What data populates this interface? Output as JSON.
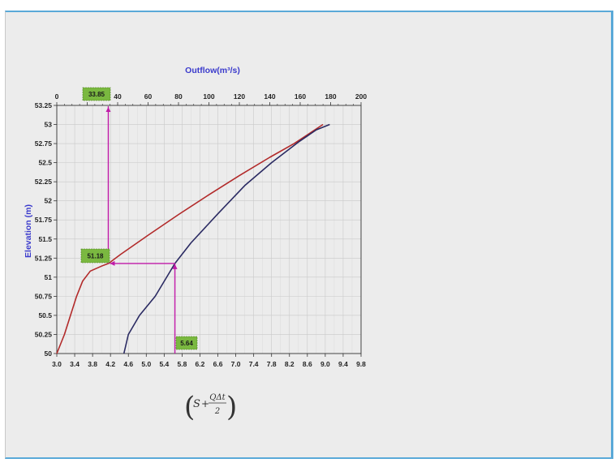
{
  "chart_data": {
    "type": "line",
    "xlabel_top": "Outflow(m³/s)",
    "ylabel": "Elevation (m)",
    "xlabel_bottom_formula": {
      "S": "S",
      "plus": "+",
      "numerator": "QΔt",
      "denominator": "2"
    },
    "top_axis": {
      "range": [
        0,
        200
      ],
      "ticks": [
        "0",
        "20",
        "40",
        "60",
        "80",
        "100",
        "120",
        "140",
        "160",
        "180",
        "200"
      ]
    },
    "bottom_axis": {
      "range": [
        3.0,
        9.8
      ],
      "ticks": [
        "3.0",
        "3.4",
        "3.8",
        "4.2",
        "4.6",
        "5.0",
        "5.4",
        "5.8",
        "6.2",
        "6.6",
        "7.0",
        "7.4",
        "7.8",
        "8.2",
        "8.6",
        "9.0",
        "9.4",
        "9.8"
      ]
    },
    "y_axis": {
      "range": [
        50,
        53.25
      ],
      "ticks": [
        "53.25",
        "53",
        "52.75",
        "52.5",
        "52.25",
        "52",
        "51.75",
        "51.5",
        "51.25",
        "51",
        "50.75",
        "50.5",
        "50.25",
        "50"
      ]
    },
    "grid": true,
    "series": [
      {
        "axis": "top",
        "color": "#b22a2a",
        "points": [
          [
            0,
            50
          ],
          [
            5,
            50.25
          ],
          [
            9,
            50.5
          ],
          [
            13,
            50.75
          ],
          [
            17,
            50.95
          ],
          [
            22,
            51.08
          ],
          [
            30,
            51.15
          ],
          [
            34,
            51.18
          ],
          [
            42,
            51.3
          ],
          [
            60,
            51.55
          ],
          [
            80,
            51.82
          ],
          [
            100,
            52.08
          ],
          [
            120,
            52.33
          ],
          [
            140,
            52.57
          ],
          [
            156,
            52.75
          ],
          [
            175,
            53.0
          ]
        ]
      },
      {
        "axis": "bottom",
        "color": "#2a2a62",
        "points": [
          [
            4.5,
            50
          ],
          [
            4.6,
            50.25
          ],
          [
            4.85,
            50.5
          ],
          [
            5.2,
            50.75
          ],
          [
            5.64,
            51.18
          ],
          [
            6.0,
            51.45
          ],
          [
            6.6,
            51.83
          ],
          [
            7.2,
            52.2
          ],
          [
            7.8,
            52.5
          ],
          [
            8.4,
            52.77
          ],
          [
            8.8,
            52.93
          ],
          [
            9.1,
            53.0
          ]
        ]
      }
    ],
    "annotations": [
      {
        "label": "33.85",
        "kind": "outflow",
        "value": 33.85
      },
      {
        "label": "51.18",
        "kind": "elevation",
        "value": 51.18
      },
      {
        "label": "5.64",
        "kind": "storage",
        "value": 5.64
      }
    ],
    "annotation_path": {
      "color": "#c01aa8",
      "from_storage": 5.64,
      "elevation": 51.18,
      "to_outflow": 33.85
    },
    "callout_fill": "#7ab840"
  }
}
